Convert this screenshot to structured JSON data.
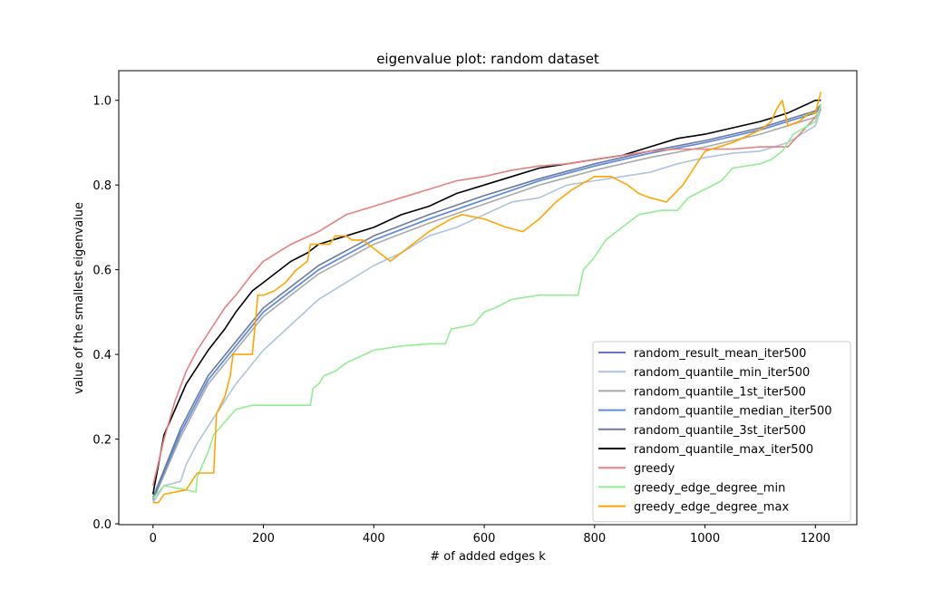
{
  "chart_data": {
    "type": "line",
    "title": "eigenvalue plot: random dataset",
    "xlabel": "# of added edges k",
    "ylabel": "value of the smallest eigenvalue",
    "xlim": [
      -62,
      1275
    ],
    "ylim": [
      -0.002,
      1.07
    ],
    "xticks": [
      0,
      200,
      400,
      600,
      800,
      1000,
      1200
    ],
    "yticks": [
      0.0,
      0.2,
      0.4,
      0.6,
      0.8,
      1.0
    ],
    "xtick_labels": [
      "0",
      "200",
      "400",
      "600",
      "800",
      "1000",
      "1200"
    ],
    "ytick_labels": [
      "0.0",
      "0.2",
      "0.4",
      "0.6",
      "0.8",
      "1.0"
    ],
    "grid": false,
    "legend_position": "lower-right",
    "series": [
      {
        "name": "random_result_mean_iter500",
        "color": "#6a6fd6",
        "points": [
          [
            0,
            0.058
          ],
          [
            50,
            0.215
          ],
          [
            100,
            0.34
          ],
          [
            200,
            0.5
          ],
          [
            300,
            0.6
          ],
          [
            400,
            0.67
          ],
          [
            500,
            0.72
          ],
          [
            600,
            0.765
          ],
          [
            700,
            0.81
          ],
          [
            800,
            0.845
          ],
          [
            900,
            0.875
          ],
          [
            1000,
            0.9
          ],
          [
            1100,
            0.93
          ],
          [
            1200,
            0.97
          ],
          [
            1210,
            0.985
          ]
        ]
      },
      {
        "name": "random_quantile_min_iter500",
        "color": "#aec4dc",
        "points": [
          [
            0,
            0.05
          ],
          [
            20,
            0.09
          ],
          [
            50,
            0.1
          ],
          [
            60,
            0.14
          ],
          [
            80,
            0.19
          ],
          [
            100,
            0.23
          ],
          [
            150,
            0.33
          ],
          [
            200,
            0.41
          ],
          [
            250,
            0.47
          ],
          [
            300,
            0.53
          ],
          [
            350,
            0.57
          ],
          [
            400,
            0.61
          ],
          [
            450,
            0.64
          ],
          [
            500,
            0.68
          ],
          [
            550,
            0.7
          ],
          [
            600,
            0.73
          ],
          [
            650,
            0.76
          ],
          [
            700,
            0.77
          ],
          [
            750,
            0.8
          ],
          [
            800,
            0.81
          ],
          [
            850,
            0.82
          ],
          [
            900,
            0.83
          ],
          [
            950,
            0.85
          ],
          [
            1000,
            0.865
          ],
          [
            1050,
            0.875
          ],
          [
            1100,
            0.88
          ],
          [
            1150,
            0.9
          ],
          [
            1200,
            0.94
          ],
          [
            1210,
            0.98
          ]
        ]
      },
      {
        "name": "random_quantile_1st_iter500",
        "color": "#a9a9a9",
        "points": [
          [
            0,
            0.055
          ],
          [
            50,
            0.205
          ],
          [
            100,
            0.33
          ],
          [
            200,
            0.49
          ],
          [
            300,
            0.59
          ],
          [
            400,
            0.66
          ],
          [
            500,
            0.71
          ],
          [
            600,
            0.755
          ],
          [
            700,
            0.8
          ],
          [
            800,
            0.835
          ],
          [
            900,
            0.865
          ],
          [
            1000,
            0.89
          ],
          [
            1100,
            0.92
          ],
          [
            1200,
            0.96
          ],
          [
            1210,
            0.98
          ]
        ]
      },
      {
        "name": "random_quantile_median_iter500",
        "color": "#5b8fde",
        "points": [
          [
            0,
            0.058
          ],
          [
            50,
            0.215
          ],
          [
            100,
            0.34
          ],
          [
            200,
            0.5
          ],
          [
            300,
            0.6
          ],
          [
            400,
            0.67
          ],
          [
            500,
            0.72
          ],
          [
            600,
            0.765
          ],
          [
            700,
            0.81
          ],
          [
            800,
            0.845
          ],
          [
            900,
            0.875
          ],
          [
            1000,
            0.9
          ],
          [
            1100,
            0.93
          ],
          [
            1200,
            0.97
          ],
          [
            1210,
            0.985
          ]
        ]
      },
      {
        "name": "random_quantile_3st_iter500",
        "color": "#6b7a9f",
        "points": [
          [
            0,
            0.062
          ],
          [
            50,
            0.225
          ],
          [
            100,
            0.35
          ],
          [
            200,
            0.51
          ],
          [
            300,
            0.61
          ],
          [
            400,
            0.68
          ],
          [
            500,
            0.73
          ],
          [
            600,
            0.775
          ],
          [
            700,
            0.815
          ],
          [
            800,
            0.85
          ],
          [
            900,
            0.88
          ],
          [
            1000,
            0.905
          ],
          [
            1100,
            0.935
          ],
          [
            1200,
            0.975
          ],
          [
            1210,
            0.99
          ]
        ]
      },
      {
        "name": "random_quantile_max_iter500",
        "color": "#000000",
        "points": [
          [
            0,
            0.07
          ],
          [
            20,
            0.21
          ],
          [
            40,
            0.27
          ],
          [
            60,
            0.33
          ],
          [
            80,
            0.37
          ],
          [
            100,
            0.41
          ],
          [
            130,
            0.46
          ],
          [
            150,
            0.5
          ],
          [
            180,
            0.55
          ],
          [
            200,
            0.57
          ],
          [
            250,
            0.62
          ],
          [
            280,
            0.64
          ],
          [
            300,
            0.66
          ],
          [
            350,
            0.68
          ],
          [
            400,
            0.7
          ],
          [
            450,
            0.73
          ],
          [
            500,
            0.75
          ],
          [
            550,
            0.78
          ],
          [
            600,
            0.8
          ],
          [
            650,
            0.82
          ],
          [
            700,
            0.84
          ],
          [
            750,
            0.85
          ],
          [
            800,
            0.86
          ],
          [
            850,
            0.87
          ],
          [
            900,
            0.89
          ],
          [
            950,
            0.91
          ],
          [
            1000,
            0.92
          ],
          [
            1050,
            0.935
          ],
          [
            1100,
            0.95
          ],
          [
            1150,
            0.97
          ],
          [
            1200,
            1.0
          ],
          [
            1210,
            1.0
          ]
        ]
      },
      {
        "name": "greedy",
        "color": "#e88080",
        "points": [
          [
            0,
            0.09
          ],
          [
            20,
            0.2
          ],
          [
            40,
            0.29
          ],
          [
            60,
            0.36
          ],
          [
            80,
            0.41
          ],
          [
            100,
            0.45
          ],
          [
            130,
            0.51
          ],
          [
            150,
            0.54
          ],
          [
            180,
            0.59
          ],
          [
            200,
            0.62
          ],
          [
            250,
            0.66
          ],
          [
            300,
            0.69
          ],
          [
            350,
            0.73
          ],
          [
            400,
            0.75
          ],
          [
            450,
            0.77
          ],
          [
            500,
            0.79
          ],
          [
            550,
            0.81
          ],
          [
            600,
            0.82
          ],
          [
            650,
            0.835
          ],
          [
            700,
            0.845
          ],
          [
            750,
            0.85
          ],
          [
            800,
            0.86
          ],
          [
            850,
            0.87
          ],
          [
            900,
            0.88
          ],
          [
            950,
            0.885
          ],
          [
            1000,
            0.885
          ],
          [
            1050,
            0.885
          ],
          [
            1100,
            0.89
          ],
          [
            1150,
            0.89
          ],
          [
            1200,
            0.96
          ],
          [
            1210,
            0.98
          ]
        ]
      },
      {
        "name": "greedy_edge_degree_min",
        "color": "#90ee90",
        "points": [
          [
            0,
            0.06
          ],
          [
            20,
            0.09
          ],
          [
            40,
            0.085
          ],
          [
            60,
            0.08
          ],
          [
            78,
            0.075
          ],
          [
            80,
            0.11
          ],
          [
            100,
            0.17
          ],
          [
            110,
            0.21
          ],
          [
            130,
            0.24
          ],
          [
            150,
            0.27
          ],
          [
            180,
            0.28
          ],
          [
            200,
            0.28
          ],
          [
            285,
            0.28
          ],
          [
            290,
            0.32
          ],
          [
            300,
            0.33
          ],
          [
            310,
            0.35
          ],
          [
            330,
            0.36
          ],
          [
            350,
            0.38
          ],
          [
            400,
            0.41
          ],
          [
            450,
            0.42
          ],
          [
            500,
            0.425
          ],
          [
            530,
            0.425
          ],
          [
            540,
            0.46
          ],
          [
            580,
            0.47
          ],
          [
            600,
            0.5
          ],
          [
            620,
            0.51
          ],
          [
            650,
            0.53
          ],
          [
            700,
            0.54
          ],
          [
            770,
            0.54
          ],
          [
            780,
            0.6
          ],
          [
            800,
            0.63
          ],
          [
            820,
            0.67
          ],
          [
            850,
            0.7
          ],
          [
            880,
            0.73
          ],
          [
            920,
            0.74
          ],
          [
            950,
            0.74
          ],
          [
            970,
            0.77
          ],
          [
            1000,
            0.79
          ],
          [
            1030,
            0.81
          ],
          [
            1050,
            0.84
          ],
          [
            1100,
            0.85
          ],
          [
            1120,
            0.86
          ],
          [
            1140,
            0.88
          ],
          [
            1160,
            0.92
          ],
          [
            1200,
            0.95
          ],
          [
            1210,
            0.99
          ]
        ]
      },
      {
        "name": "greedy_edge_degree_max",
        "color": "#ffa500",
        "points": [
          [
            0,
            0.05
          ],
          [
            10,
            0.05
          ],
          [
            20,
            0.07
          ],
          [
            60,
            0.08
          ],
          [
            80,
            0.12
          ],
          [
            100,
            0.12
          ],
          [
            110,
            0.12
          ],
          [
            115,
            0.26
          ],
          [
            130,
            0.3
          ],
          [
            140,
            0.35
          ],
          [
            145,
            0.4
          ],
          [
            170,
            0.4
          ],
          [
            180,
            0.4
          ],
          [
            190,
            0.54
          ],
          [
            200,
            0.54
          ],
          [
            220,
            0.55
          ],
          [
            240,
            0.57
          ],
          [
            260,
            0.6
          ],
          [
            280,
            0.62
          ],
          [
            285,
            0.66
          ],
          [
            300,
            0.66
          ],
          [
            320,
            0.66
          ],
          [
            330,
            0.68
          ],
          [
            350,
            0.68
          ],
          [
            360,
            0.67
          ],
          [
            380,
            0.67
          ],
          [
            400,
            0.65
          ],
          [
            420,
            0.63
          ],
          [
            430,
            0.62
          ],
          [
            450,
            0.64
          ],
          [
            500,
            0.69
          ],
          [
            540,
            0.72
          ],
          [
            560,
            0.73
          ],
          [
            600,
            0.72
          ],
          [
            640,
            0.7
          ],
          [
            670,
            0.69
          ],
          [
            700,
            0.72
          ],
          [
            730,
            0.76
          ],
          [
            760,
            0.79
          ],
          [
            800,
            0.82
          ],
          [
            830,
            0.82
          ],
          [
            860,
            0.8
          ],
          [
            880,
            0.78
          ],
          [
            900,
            0.77
          ],
          [
            930,
            0.76
          ],
          [
            960,
            0.8
          ],
          [
            1000,
            0.88
          ],
          [
            1050,
            0.9
          ],
          [
            1100,
            0.93
          ],
          [
            1120,
            0.95
          ],
          [
            1130,
            0.98
          ],
          [
            1140,
            1.0
          ],
          [
            1150,
            0.94
          ],
          [
            1170,
            0.95
          ],
          [
            1190,
            0.97
          ],
          [
            1200,
            0.97
          ],
          [
            1210,
            1.02
          ]
        ]
      }
    ]
  }
}
